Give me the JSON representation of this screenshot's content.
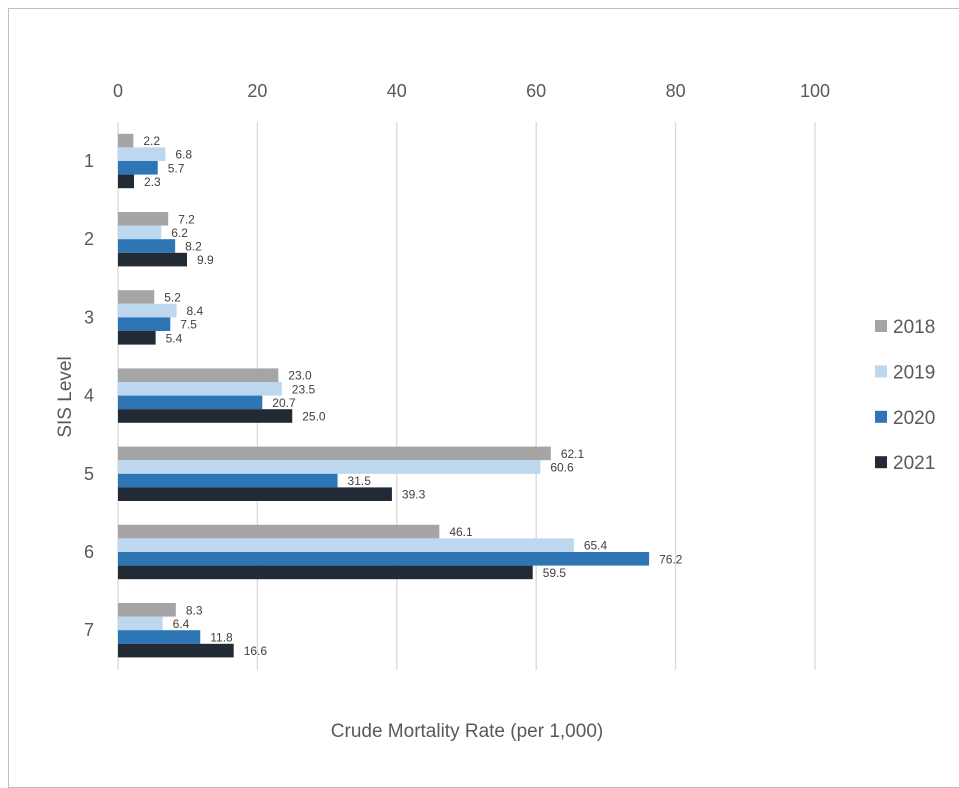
{
  "chart_data": {
    "type": "bar",
    "orientation": "horizontal",
    "title": "",
    "xlabel": "Crude Mortality Rate (per 1,000)",
    "ylabel": "SIS Level",
    "xlim": [
      0,
      100
    ],
    "x_ticks": [
      0,
      20,
      40,
      60,
      80,
      100
    ],
    "x_axis_position": "top",
    "grid": "vertical",
    "legend_position": "right",
    "categories": [
      "1",
      "2",
      "3",
      "4",
      "5",
      "6",
      "7"
    ],
    "series": [
      {
        "name": "2018",
        "color": "#a5a5a5",
        "values": [
          2.2,
          7.2,
          5.2,
          23.0,
          62.1,
          46.1,
          8.3
        ]
      },
      {
        "name": "2019",
        "color": "#bdd7ee",
        "values": [
          6.8,
          6.2,
          8.4,
          23.5,
          60.6,
          65.4,
          6.4
        ]
      },
      {
        "name": "2020",
        "color": "#2e75b6",
        "values": [
          5.7,
          8.2,
          7.5,
          20.7,
          31.5,
          76.2,
          11.8
        ]
      },
      {
        "name": "2021",
        "color": "#222a35",
        "values": [
          2.3,
          9.9,
          5.4,
          25.0,
          39.3,
          59.5,
          16.6
        ]
      }
    ]
  }
}
